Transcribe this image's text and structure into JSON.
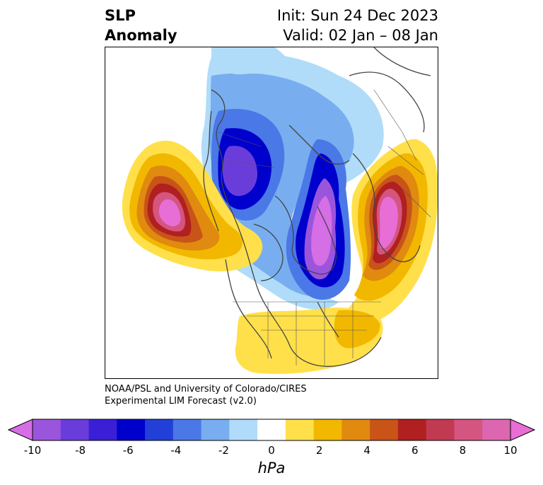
{
  "header": {
    "title_line1": "SLP",
    "title_line2": "Anomaly",
    "init_label": "Init: Sun 24 Dec 2023",
    "valid_label": "Valid: 02 Jan – 08 Jan"
  },
  "credit": {
    "line1": "NOAA/PSL and University of Colorado/CIRES",
    "line2": "Experimental LIM Forecast (v2.0)"
  },
  "colorbar": {
    "unit": "hPa",
    "ticks": [
      "-10",
      "-8",
      "-6",
      "-4",
      "-2",
      "0",
      "2",
      "4",
      "6",
      "8",
      "10"
    ],
    "colors": [
      "#d66ee6",
      "#9b55dc",
      "#6a3ddb",
      "#3a1fd6",
      "#0000cc",
      "#2240d8",
      "#4a78e6",
      "#78aef0",
      "#b0dcfa",
      "#ffffff",
      "#ffe04a",
      "#f2b800",
      "#e08a10",
      "#c85418",
      "#b02020",
      "#c23a52",
      "#d45580",
      "#dc66b0",
      "#e86ed6"
    ]
  },
  "map": {
    "projection": "north-polar-stereographic",
    "features": [
      "positive anomaly over northeast Pacific",
      "negative anomaly over western Canada",
      "negative anomaly over northern Atlantic / Greenland",
      "positive anomaly over Scandinavia / western Russia",
      "positive anomaly over southeastern United States"
    ]
  }
}
